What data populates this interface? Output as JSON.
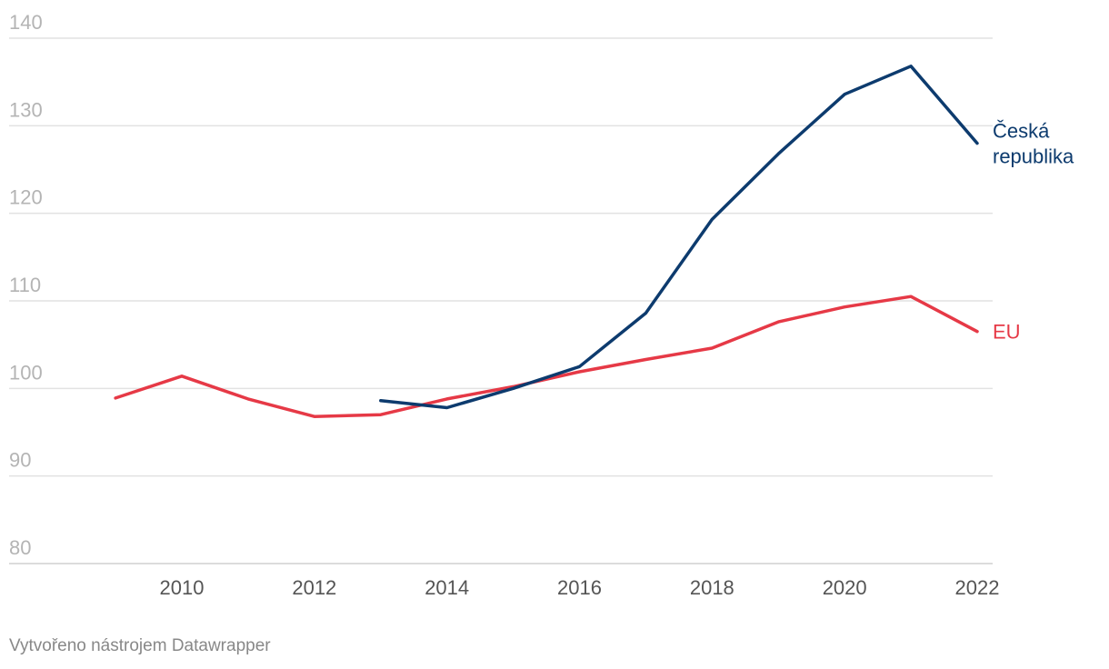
{
  "chart_data": {
    "type": "line",
    "title": "",
    "xlabel": "",
    "ylabel": "",
    "ylim": [
      80,
      140
    ],
    "yticks": [
      80,
      90,
      100,
      110,
      120,
      130,
      140
    ],
    "xlim": [
      2008,
      2022
    ],
    "xticks": [
      2010,
      2012,
      2014,
      2016,
      2018,
      2020,
      2022
    ],
    "series": [
      {
        "name": "EU",
        "color": "#e63946",
        "x": [
          2009,
          2010,
          2011,
          2012,
          2013,
          2014,
          2015,
          2016,
          2017,
          2018,
          2019,
          2020,
          2021,
          2022
        ],
        "values": [
          98.9,
          101.4,
          98.8,
          96.8,
          97.0,
          98.8,
          100.2,
          101.9,
          103.3,
          104.6,
          107.6,
          109.3,
          110.5,
          106.5
        ]
      },
      {
        "name": "Česká\nrepublika",
        "color": "#0d3b6e",
        "x": [
          2013,
          2014,
          2015,
          2016,
          2017,
          2018,
          2019,
          2020,
          2021,
          2022
        ],
        "values": [
          98.6,
          97.8,
          100.0,
          102.5,
          108.6,
          119.3,
          126.8,
          133.6,
          136.8,
          128.0
        ]
      }
    ]
  },
  "footer": {
    "credit": "Vytvořeno nástrojem Datawrapper"
  }
}
